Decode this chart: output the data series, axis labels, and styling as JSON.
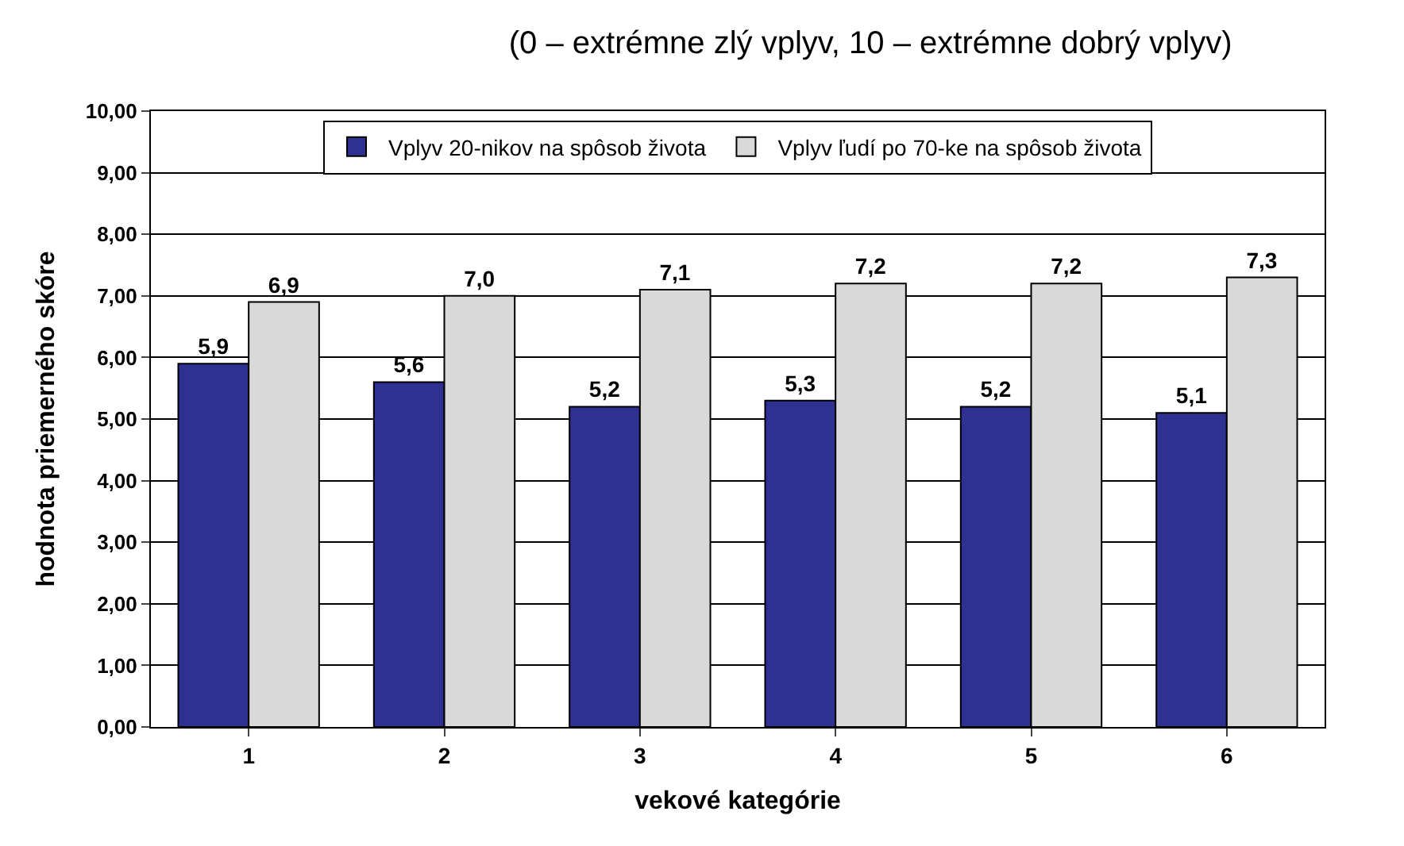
{
  "chart_data": {
    "type": "bar",
    "title": "(0 – extrémne zlý vplyv, 10 – extrémne dobrý vplyv)",
    "xlabel": "vekové kategórie",
    "ylabel": "hodnota priemerného skóre",
    "categories": [
      "1",
      "2",
      "3",
      "4",
      "5",
      "6"
    ],
    "series": [
      {
        "name": "Vplyv 20-nikov na spôsob života",
        "color": "#2e3192",
        "values": [
          5.9,
          5.6,
          5.2,
          5.3,
          5.2,
          5.1
        ],
        "value_labels": [
          "5,9",
          "5,6",
          "5,2",
          "5,3",
          "5,2",
          "5,1"
        ]
      },
      {
        "name": "Vplyv ľudí po 70-ke na spôsob života",
        "color": "#d9d9d9",
        "values": [
          6.9,
          7.0,
          7.1,
          7.2,
          7.2,
          7.3
        ],
        "value_labels": [
          "6,9",
          "7,0",
          "7,1",
          "7,2",
          "7,2",
          "7,3"
        ]
      }
    ],
    "ylim": [
      0,
      10
    ],
    "yticks": [
      {
        "value": 0,
        "label": "0,00"
      },
      {
        "value": 1,
        "label": "1,00"
      },
      {
        "value": 2,
        "label": "2,00"
      },
      {
        "value": 3,
        "label": "3,00"
      },
      {
        "value": 4,
        "label": "4,00"
      },
      {
        "value": 5,
        "label": "5,00"
      },
      {
        "value": 6,
        "label": "6,00"
      },
      {
        "value": 7,
        "label": "7,00"
      },
      {
        "value": 8,
        "label": "8,00"
      },
      {
        "value": 9,
        "label": "9,00"
      },
      {
        "value": 10,
        "label": "10,00"
      }
    ],
    "grid": "y",
    "legend": "top"
  }
}
